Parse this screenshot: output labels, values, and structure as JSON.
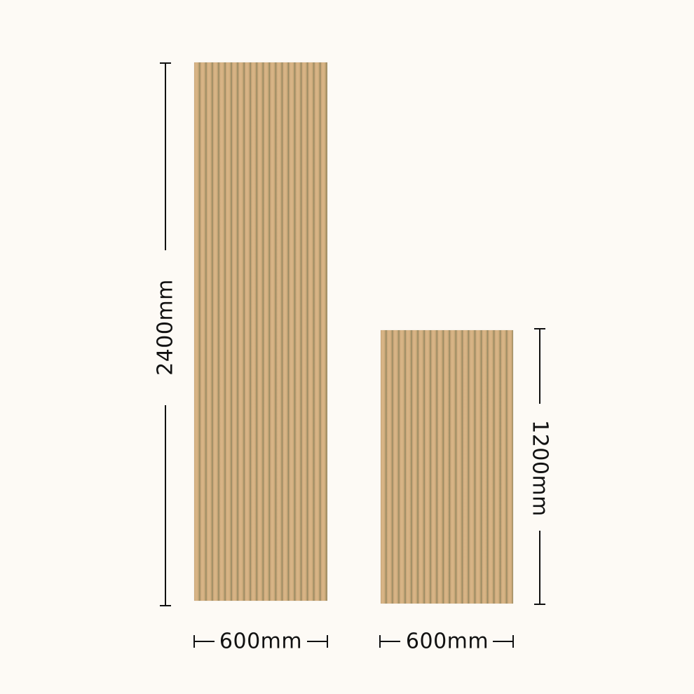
{
  "colors": {
    "background": "#fdfaf5",
    "panel": "#d2ae80",
    "flute_shadow": "#8f8560",
    "dimension_line": "#111111"
  },
  "panels": [
    {
      "name": "tall-panel",
      "height_label": "2400mm",
      "width_label": "600mm"
    },
    {
      "name": "short-panel",
      "height_label": "1200mm",
      "width_label": "600mm"
    }
  ]
}
